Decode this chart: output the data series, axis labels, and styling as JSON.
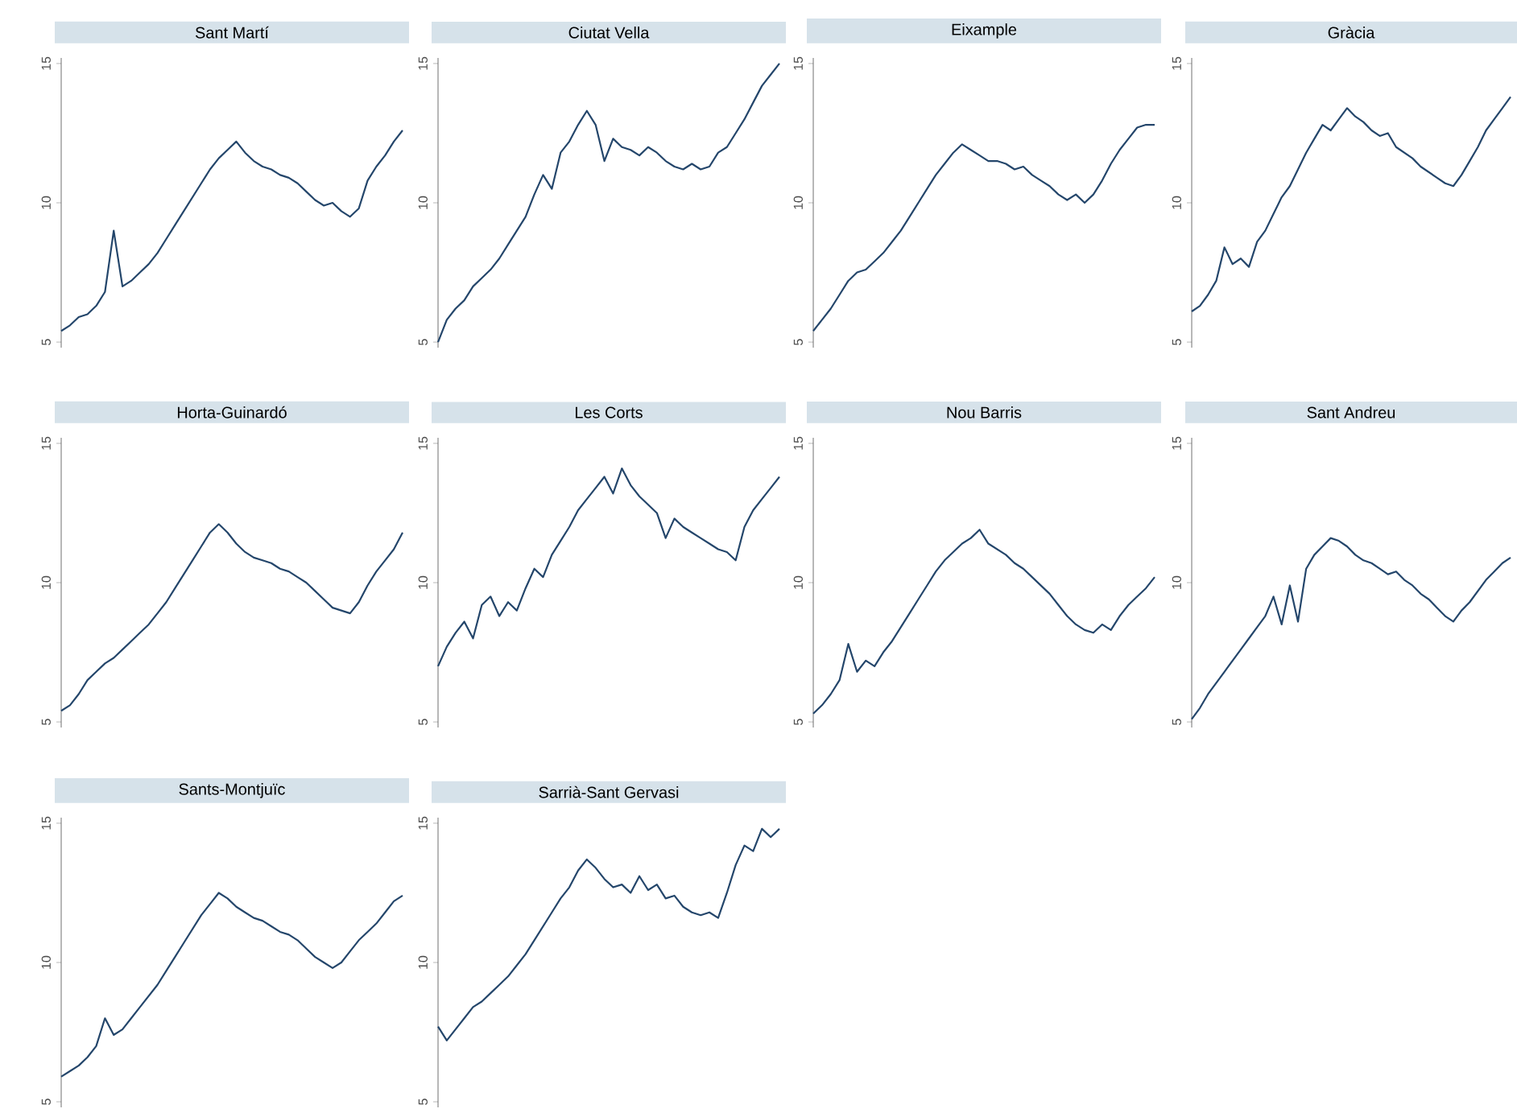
{
  "chart_data": [
    {
      "type": "line",
      "title": "Sant Martí",
      "categories": [
        null,
        null,
        null,
        null,
        null,
        null,
        null,
        null,
        null,
        null,
        null,
        null,
        null,
        null,
        null,
        null,
        null,
        null,
        null,
        null,
        null,
        null,
        null,
        null,
        null,
        null,
        null,
        null,
        null,
        null,
        null,
        null,
        null,
        null,
        null,
        null,
        null,
        null,
        null,
        null
      ],
      "values": [
        5.4,
        5.6,
        5.9,
        6.0,
        6.3,
        6.8,
        9.0,
        7.0,
        7.2,
        7.5,
        7.8,
        8.2,
        8.7,
        9.2,
        9.7,
        10.2,
        10.7,
        11.2,
        11.6,
        11.9,
        12.2,
        11.8,
        11.5,
        11.3,
        11.2,
        11.0,
        10.9,
        10.7,
        10.4,
        10.1,
        9.9,
        10.0,
        9.7,
        9.5,
        9.8,
        10.8,
        11.3,
        11.7,
        12.2,
        12.6
      ],
      "color": "#24466b",
      "ylim": [
        4.8,
        15.2
      ],
      "yticks": [
        5,
        10,
        15
      ]
    },
    {
      "type": "line",
      "title": "Ciutat Vella",
      "categories": [
        null,
        null,
        null,
        null,
        null,
        null,
        null,
        null,
        null,
        null,
        null,
        null,
        null,
        null,
        null,
        null,
        null,
        null,
        null,
        null,
        null,
        null,
        null,
        null,
        null,
        null,
        null,
        null,
        null,
        null,
        null,
        null,
        null,
        null,
        null,
        null,
        null,
        null,
        null,
        null
      ],
      "values": [
        5.0,
        5.8,
        6.2,
        6.5,
        7.0,
        7.3,
        7.6,
        8.0,
        8.5,
        9.0,
        9.5,
        10.3,
        11.0,
        10.5,
        11.8,
        12.2,
        12.8,
        13.3,
        12.8,
        11.5,
        12.3,
        12.0,
        11.9,
        11.7,
        12.0,
        11.8,
        11.5,
        11.3,
        11.2,
        11.4,
        11.2,
        11.3,
        11.8,
        12.0,
        12.5,
        13.0,
        13.6,
        14.2,
        14.6,
        15.0
      ],
      "color": "#24466b",
      "ylim": [
        4.8,
        15.2
      ],
      "yticks": [
        5,
        10,
        15
      ]
    },
    {
      "type": "line",
      "title": "Eixample",
      "categories": [
        null,
        null,
        null,
        null,
        null,
        null,
        null,
        null,
        null,
        null,
        null,
        null,
        null,
        null,
        null,
        null,
        null,
        null,
        null,
        null,
        null,
        null,
        null,
        null,
        null,
        null,
        null,
        null,
        null,
        null,
        null,
        null,
        null,
        null,
        null,
        null,
        null,
        null,
        null,
        null
      ],
      "values": [
        5.4,
        5.8,
        6.2,
        6.7,
        7.2,
        7.5,
        7.6,
        7.9,
        8.2,
        8.6,
        9.0,
        9.5,
        10.0,
        10.5,
        11.0,
        11.4,
        11.8,
        12.1,
        11.9,
        11.7,
        11.5,
        11.5,
        11.4,
        11.2,
        11.3,
        11.0,
        10.8,
        10.6,
        10.3,
        10.1,
        10.3,
        10.0,
        10.3,
        10.8,
        11.4,
        11.9,
        12.3,
        12.7,
        12.8,
        12.8
      ],
      "color": "#24466b",
      "ylim": [
        4.8,
        15.2
      ],
      "yticks": [
        5,
        10,
        15
      ]
    },
    {
      "type": "line",
      "title": "Gràcia",
      "categories": [
        null,
        null,
        null,
        null,
        null,
        null,
        null,
        null,
        null,
        null,
        null,
        null,
        null,
        null,
        null,
        null,
        null,
        null,
        null,
        null,
        null,
        null,
        null,
        null,
        null,
        null,
        null,
        null,
        null,
        null,
        null,
        null,
        null,
        null,
        null,
        null,
        null,
        null,
        null,
        null
      ],
      "values": [
        6.1,
        6.3,
        6.7,
        7.2,
        8.4,
        7.8,
        8.0,
        7.7,
        8.6,
        9.0,
        9.6,
        10.2,
        10.6,
        11.2,
        11.8,
        12.3,
        12.8,
        12.6,
        13.0,
        13.4,
        13.1,
        12.9,
        12.6,
        12.4,
        12.5,
        12.0,
        11.8,
        11.6,
        11.3,
        11.1,
        10.9,
        10.7,
        10.6,
        11.0,
        11.5,
        12.0,
        12.6,
        13.0,
        13.4,
        13.8
      ],
      "color": "#24466b",
      "ylim": [
        4.8,
        15.2
      ],
      "yticks": [
        5,
        10,
        15
      ]
    },
    {
      "type": "line",
      "title": "Horta-Guinardó",
      "categories": [
        null,
        null,
        null,
        null,
        null,
        null,
        null,
        null,
        null,
        null,
        null,
        null,
        null,
        null,
        null,
        null,
        null,
        null,
        null,
        null,
        null,
        null,
        null,
        null,
        null,
        null,
        null,
        null,
        null,
        null,
        null,
        null,
        null,
        null,
        null,
        null,
        null,
        null,
        null,
        null
      ],
      "values": [
        5.4,
        5.6,
        6.0,
        6.5,
        6.8,
        7.1,
        7.3,
        7.6,
        7.9,
        8.2,
        8.5,
        8.9,
        9.3,
        9.8,
        10.3,
        10.8,
        11.3,
        11.8,
        12.1,
        11.8,
        11.4,
        11.1,
        10.9,
        10.8,
        10.7,
        10.5,
        10.4,
        10.2,
        10.0,
        9.7,
        9.4,
        9.1,
        9.0,
        8.9,
        9.3,
        9.9,
        10.4,
        10.8,
        11.2,
        11.8
      ],
      "color": "#24466b",
      "ylim": [
        4.8,
        15.2
      ],
      "yticks": [
        5,
        10,
        15
      ]
    },
    {
      "type": "line",
      "title": "Les Corts",
      "categories": [
        null,
        null,
        null,
        null,
        null,
        null,
        null,
        null,
        null,
        null,
        null,
        null,
        null,
        null,
        null,
        null,
        null,
        null,
        null,
        null,
        null,
        null,
        null,
        null,
        null,
        null,
        null,
        null,
        null,
        null,
        null,
        null,
        null,
        null,
        null,
        null,
        null,
        null,
        null,
        null
      ],
      "values": [
        7.0,
        7.7,
        8.2,
        8.6,
        8.0,
        9.2,
        9.5,
        8.8,
        9.3,
        9.0,
        9.8,
        10.5,
        10.2,
        11.0,
        11.5,
        12.0,
        12.6,
        13.0,
        13.4,
        13.8,
        13.2,
        14.1,
        13.5,
        13.1,
        12.8,
        12.5,
        11.6,
        12.3,
        12.0,
        11.8,
        11.6,
        11.4,
        11.2,
        11.1,
        10.8,
        12.0,
        12.6,
        13.0,
        13.4,
        13.8
      ],
      "color": "#24466b",
      "ylim": [
        4.8,
        15.2
      ],
      "yticks": [
        5,
        10,
        15
      ]
    },
    {
      "type": "line",
      "title": "Nou Barris",
      "categories": [
        null,
        null,
        null,
        null,
        null,
        null,
        null,
        null,
        null,
        null,
        null,
        null,
        null,
        null,
        null,
        null,
        null,
        null,
        null,
        null,
        null,
        null,
        null,
        null,
        null,
        null,
        null,
        null,
        null,
        null,
        null,
        null,
        null,
        null,
        null,
        null,
        null,
        null,
        null,
        null
      ],
      "values": [
        5.3,
        5.6,
        6.0,
        6.5,
        7.8,
        6.8,
        7.2,
        7.0,
        7.5,
        7.9,
        8.4,
        8.9,
        9.4,
        9.9,
        10.4,
        10.8,
        11.1,
        11.4,
        11.6,
        11.9,
        11.4,
        11.2,
        11.0,
        10.7,
        10.5,
        10.2,
        9.9,
        9.6,
        9.2,
        8.8,
        8.5,
        8.3,
        8.2,
        8.5,
        8.3,
        8.8,
        9.2,
        9.5,
        9.8,
        10.2
      ],
      "color": "#24466b",
      "ylim": [
        4.8,
        15.2
      ],
      "yticks": [
        5,
        10,
        15
      ]
    },
    {
      "type": "line",
      "title": "Sant Andreu",
      "categories": [
        null,
        null,
        null,
        null,
        null,
        null,
        null,
        null,
        null,
        null,
        null,
        null,
        null,
        null,
        null,
        null,
        null,
        null,
        null,
        null,
        null,
        null,
        null,
        null,
        null,
        null,
        null,
        null,
        null,
        null,
        null,
        null,
        null,
        null,
        null,
        null,
        null,
        null,
        null,
        null
      ],
      "values": [
        5.1,
        5.5,
        6.0,
        6.4,
        6.8,
        7.2,
        7.6,
        8.0,
        8.4,
        8.8,
        9.5,
        8.5,
        9.9,
        8.6,
        10.5,
        11.0,
        11.3,
        11.6,
        11.5,
        11.3,
        11.0,
        10.8,
        10.7,
        10.5,
        10.3,
        10.4,
        10.1,
        9.9,
        9.6,
        9.4,
        9.1,
        8.8,
        8.6,
        9.0,
        9.3,
        9.7,
        10.1,
        10.4,
        10.7,
        10.9
      ],
      "color": "#24466b",
      "ylim": [
        4.8,
        15.2
      ],
      "yticks": [
        5,
        10,
        15
      ]
    },
    {
      "type": "line",
      "title": "Sants-Montjuïc",
      "categories": [
        null,
        null,
        null,
        null,
        null,
        null,
        null,
        null,
        null,
        null,
        null,
        null,
        null,
        null,
        null,
        null,
        null,
        null,
        null,
        null,
        null,
        null,
        null,
        null,
        null,
        null,
        null,
        null,
        null,
        null,
        null,
        null,
        null,
        null,
        null,
        null,
        null,
        null,
        null,
        null
      ],
      "values": [
        5.9,
        6.1,
        6.3,
        6.6,
        7.0,
        8.0,
        7.4,
        7.6,
        8.0,
        8.4,
        8.8,
        9.2,
        9.7,
        10.2,
        10.7,
        11.2,
        11.7,
        12.1,
        12.5,
        12.3,
        12.0,
        11.8,
        11.6,
        11.5,
        11.3,
        11.1,
        11.0,
        10.8,
        10.5,
        10.2,
        10.0,
        9.8,
        10.0,
        10.4,
        10.8,
        11.1,
        11.4,
        11.8,
        12.2,
        12.4
      ],
      "color": "#24466b",
      "ylim": [
        4.8,
        15.2
      ],
      "yticks": [
        5,
        10,
        15
      ]
    },
    {
      "type": "line",
      "title": "Sarrià-Sant Gervasi",
      "categories": [
        null,
        null,
        null,
        null,
        null,
        null,
        null,
        null,
        null,
        null,
        null,
        null,
        null,
        null,
        null,
        null,
        null,
        null,
        null,
        null,
        null,
        null,
        null,
        null,
        null,
        null,
        null,
        null,
        null,
        null,
        null,
        null,
        null,
        null,
        null,
        null,
        null,
        null,
        null,
        null
      ],
      "values": [
        7.7,
        7.2,
        7.6,
        8.0,
        8.4,
        8.6,
        8.9,
        9.2,
        9.5,
        9.9,
        10.3,
        10.8,
        11.3,
        11.8,
        12.3,
        12.7,
        13.3,
        13.7,
        13.4,
        13.0,
        12.7,
        12.8,
        12.5,
        13.1,
        12.6,
        12.8,
        12.3,
        12.4,
        12.0,
        11.8,
        11.7,
        11.8,
        11.6,
        12.5,
        13.5,
        14.2,
        14.0,
        14.8,
        14.5,
        14.8
      ],
      "color": "#24466b",
      "ylim": [
        4.8,
        15.2
      ],
      "yticks": [
        5,
        10,
        15
      ]
    }
  ]
}
